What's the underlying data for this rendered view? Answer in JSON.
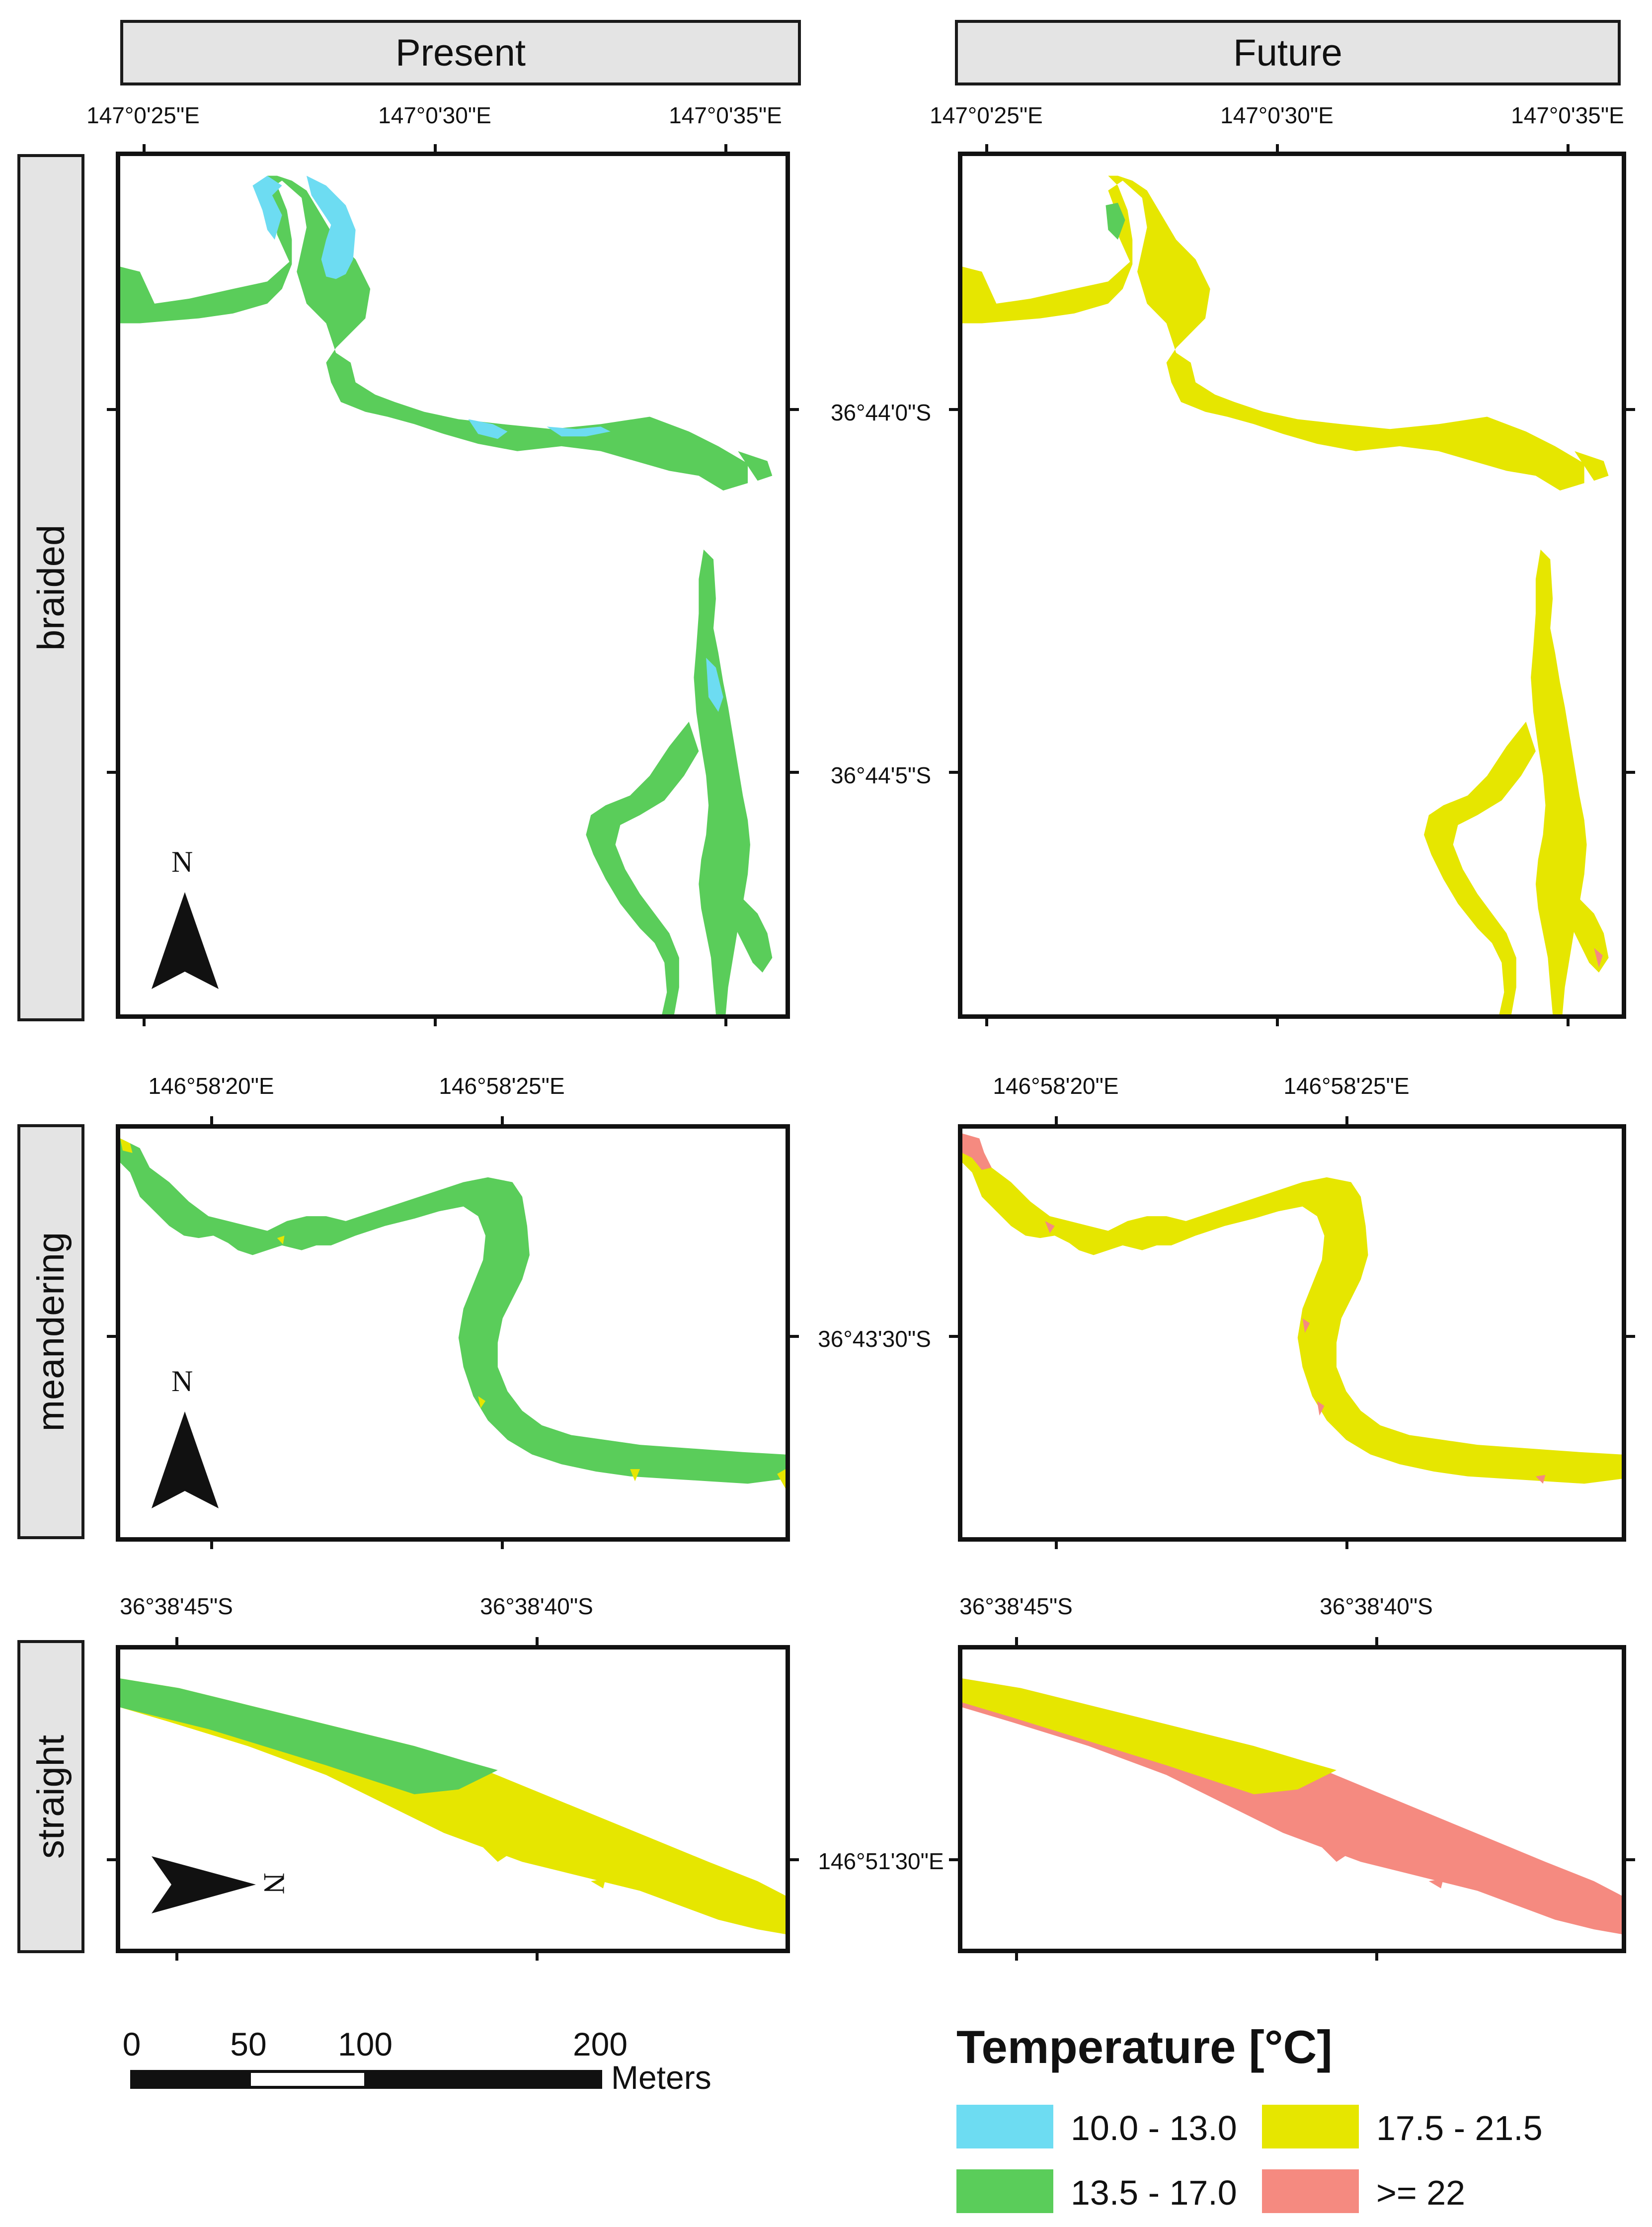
{
  "columns": {
    "present": "Present",
    "future": "Future"
  },
  "rows": {
    "braided": "braided",
    "meandering": "meandering",
    "straight": "straight"
  },
  "coords": {
    "braided_top": [
      "147°0'25\"E",
      "147°0'30\"E",
      "147°0'35\"E"
    ],
    "braided_side": [
      "36°44'0\"S",
      "36°44'5\"S"
    ],
    "meandering_top": [
      "146°58'20\"E",
      "146°58'25\"E"
    ],
    "meandering_side": [
      "36°43'30\"S"
    ],
    "straight_top": [
      "36°38'45\"S",
      "36°38'40\"S"
    ],
    "straight_side": [
      "146°51'30\"E"
    ]
  },
  "north_label": "N",
  "scale": {
    "ticks": [
      "0",
      "50",
      "100",
      "200"
    ],
    "unit": "Meters"
  },
  "legend": {
    "title": "Temperature [°C]",
    "items": [
      {
        "label": "10.0 - 13.0",
        "color": "#6ddcf2"
      },
      {
        "label": "17.5 - 21.5",
        "color": "#e6e600"
      },
      {
        "label": "13.5 - 17.0",
        "color": "#5acd5a"
      },
      {
        "label": ">= 22",
        "color": "#f58a80"
      }
    ]
  },
  "colors": {
    "cold": "#6ddcf2",
    "cool": "#5acd5a",
    "warm": "#e6e600",
    "hot": "#f58a80"
  },
  "icons": {
    "north_arrow": "north-arrow-icon"
  }
}
